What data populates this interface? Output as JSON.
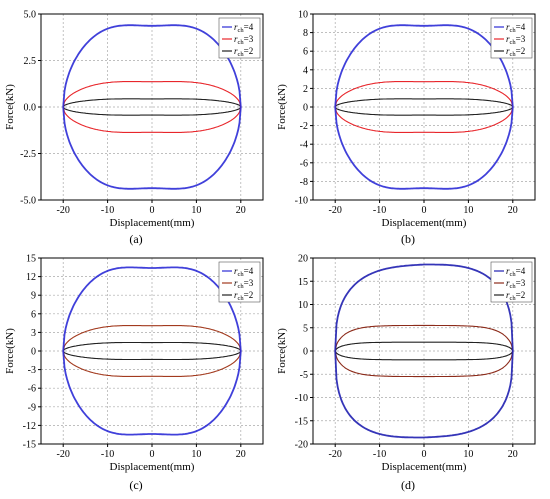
{
  "figure": {
    "panels": [
      {
        "caption": "(a)",
        "xlabel": "Displacement(mm)",
        "ylabel": "Force(kN)"
      },
      {
        "caption": "(b)",
        "xlabel": "Displacement(mm)",
        "ylabel": "Force(kN)"
      },
      {
        "caption": "(c)",
        "xlabel": "Displacement(mm)",
        "ylabel": "Force(kN)"
      },
      {
        "caption": "(d)",
        "xlabel": "Displacement(mm)",
        "ylabel": "Force(kN)"
      }
    ]
  },
  "chart_data": [
    {
      "type": "line",
      "panel": "(a)",
      "xlabel": "Displacement(mm)",
      "ylabel": "Force(kN)",
      "xlim": [
        -25,
        25
      ],
      "ylim": [
        -5,
        5
      ],
      "xticks": [
        -20,
        -10,
        0,
        10,
        20
      ],
      "yticks": [
        -5.0,
        -2.5,
        0.0,
        2.5,
        5.0
      ],
      "ytick_labels": [
        "-5.0",
        "-2.5",
        "0.0",
        "2.5",
        "5.0"
      ],
      "grid": true,
      "legend_position": "top-right",
      "series": [
        {
          "name": "r_ch=4",
          "label_main": "r",
          "label_sub": "ch",
          "label_rest": "=4",
          "color": "#2b2bd6",
          "peak_force": 4.5,
          "max_displacement": 20,
          "shape": "loop"
        },
        {
          "name": "r_ch=3",
          "label_main": "r",
          "label_sub": "ch",
          "label_rest": "=3",
          "color": "#e8262b",
          "peak_force": 1.4,
          "max_displacement": 20,
          "shape": "loop"
        },
        {
          "name": "r_ch=2",
          "label_main": "r",
          "label_sub": "ch",
          "label_rest": "=2",
          "color": "#222222",
          "peak_force": 0.45,
          "max_displacement": 20,
          "shape": "loop"
        }
      ]
    },
    {
      "type": "line",
      "panel": "(b)",
      "xlabel": "Displacement(mm)",
      "ylabel": "Force(kN)",
      "xlim": [
        -25,
        25
      ],
      "ylim": [
        -10,
        10
      ],
      "xticks": [
        -20,
        -10,
        0,
        10,
        20
      ],
      "yticks": [
        -10,
        -8,
        -6,
        -4,
        -2,
        0,
        2,
        4,
        6,
        8,
        10
      ],
      "ytick_labels": [
        "-10",
        "-8",
        "-6",
        "-4",
        "-2",
        "0",
        "2",
        "4",
        "6",
        "8",
        "10"
      ],
      "grid": true,
      "legend_position": "top-right",
      "series": [
        {
          "name": "r_ch=4",
          "label_main": "r",
          "label_sub": "ch",
          "label_rest": "=4",
          "color": "#2b2bd6",
          "peak_force": 9.0,
          "max_displacement": 20,
          "shape": "loop"
        },
        {
          "name": "r_ch=3",
          "label_main": "r",
          "label_sub": "ch",
          "label_rest": "=3",
          "color": "#e8262b",
          "peak_force": 2.8,
          "max_displacement": 20,
          "shape": "loop"
        },
        {
          "name": "r_ch=2",
          "label_main": "r",
          "label_sub": "ch",
          "label_rest": "=2",
          "color": "#222222",
          "peak_force": 0.9,
          "max_displacement": 20,
          "shape": "loop"
        }
      ]
    },
    {
      "type": "line",
      "panel": "(c)",
      "xlabel": "Displacement(mm)",
      "ylabel": "Force(kN)",
      "xlim": [
        -25,
        25
      ],
      "ylim": [
        -15,
        15
      ],
      "xticks": [
        -20,
        -10,
        0,
        10,
        20
      ],
      "yticks": [
        -15,
        -12,
        -9,
        -6,
        -3,
        0,
        3,
        6,
        9,
        12,
        15
      ],
      "ytick_labels": [
        "-15",
        "-12",
        "-9",
        "-6",
        "-3",
        "0",
        "3",
        "6",
        "9",
        "12",
        "15"
      ],
      "grid": true,
      "legend_position": "top-right",
      "series": [
        {
          "name": "r_ch=4",
          "label_main": "r",
          "label_sub": "ch",
          "label_rest": "=4",
          "color": "#2b2bd6",
          "peak_force": 13.8,
          "max_displacement": 20,
          "shape": "loop"
        },
        {
          "name": "r_ch=3",
          "label_main": "r",
          "label_sub": "ch",
          "label_rest": "=3",
          "color": "#a23a1e",
          "peak_force": 4.2,
          "max_displacement": 20,
          "shape": "loop"
        },
        {
          "name": "r_ch=2",
          "label_main": "r",
          "label_sub": "ch",
          "label_rest": "=2",
          "color": "#222222",
          "peak_force": 1.4,
          "max_displacement": 20,
          "shape": "loop"
        }
      ]
    },
    {
      "type": "line",
      "panel": "(d)",
      "xlabel": "Displacement(mm)",
      "ylabel": "Force(kN)",
      "xlim": [
        -25,
        25
      ],
      "ylim": [
        -20,
        20
      ],
      "xticks": [
        -20,
        -10,
        0,
        10,
        20
      ],
      "yticks": [
        -20,
        -15,
        -10,
        -5,
        0,
        5,
        10,
        15,
        20
      ],
      "ytick_labels": [
        "-20",
        "-15",
        "-10",
        "-5",
        "0",
        "5",
        "10",
        "15",
        "20"
      ],
      "grid": true,
      "legend_position": "top-right",
      "series": [
        {
          "name": "r_ch=4",
          "label_main": "r",
          "label_sub": "ch",
          "label_rest": "=4",
          "color": "#1f1fb0",
          "peak_force": 18.6,
          "max_displacement": 20,
          "shape": "skewed-loop"
        },
        {
          "name": "r_ch=3",
          "label_main": "r",
          "label_sub": "ch",
          "label_rest": "=3",
          "color": "#8c2b1a",
          "peak_force": 5.5,
          "max_displacement": 20,
          "shape": "flat-loop"
        },
        {
          "name": "r_ch=2",
          "label_main": "r",
          "label_sub": "ch",
          "label_rest": "=2",
          "color": "#222222",
          "peak_force": 1.9,
          "max_displacement": 20,
          "shape": "flat-loop"
        }
      ]
    }
  ]
}
